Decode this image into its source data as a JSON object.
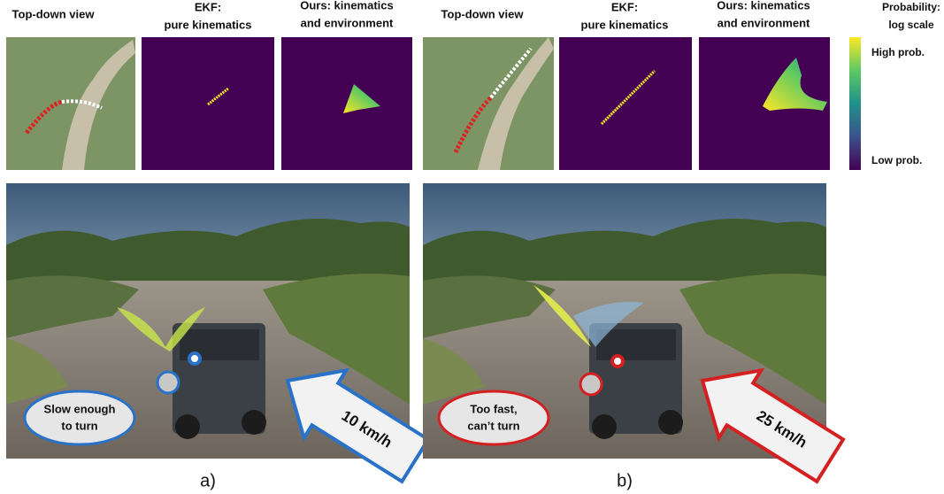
{
  "panels": [
    {
      "label": "a)",
      "headers": [
        [
          "Top-down view"
        ],
        [
          "EKF:",
          "pure kinematics"
        ],
        [
          "Ours: kinematics",
          "and environment"
        ]
      ],
      "callout": [
        "Slow enough",
        "to turn"
      ],
      "speed": "10 km/h"
    },
    {
      "label": "b)",
      "headers": [
        [
          "Top-down view"
        ],
        [
          "EKF:",
          "pure kinematics"
        ],
        [
          "Ours: kinematics",
          "and environment"
        ]
      ],
      "callout": [
        "Too fast,",
        "can’t turn"
      ],
      "speed": "25 km/h"
    }
  ],
  "colorbar": {
    "title": [
      "Probability:",
      "log scale"
    ],
    "high": "High prob.",
    "low": "Low prob."
  }
}
